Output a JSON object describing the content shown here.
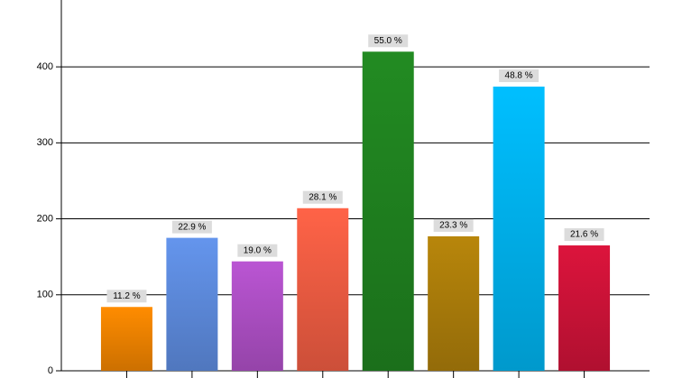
{
  "chart_data": {
    "type": "bar",
    "categories": [
      null,
      null,
      null,
      null,
      null,
      null,
      null,
      null
    ],
    "values": [
      84,
      175,
      144,
      214,
      420,
      177,
      374,
      165
    ],
    "percent_labels": [
      "11.2 %",
      "22.9 %",
      "19.0 %",
      "28.1 %",
      "55.0 %",
      "23.3 %",
      "48.8 %",
      "21.6 %"
    ],
    "colors": [
      "#ff8c00",
      "#6495ed",
      "#ba55d3",
      "#ff6347",
      "#228b22",
      "#b8860b",
      "#00bfff",
      "#dc143c"
    ],
    "ylim": [
      0,
      488
    ],
    "yticks": [
      0,
      100,
      200,
      300,
      400
    ],
    "grid": true
  }
}
